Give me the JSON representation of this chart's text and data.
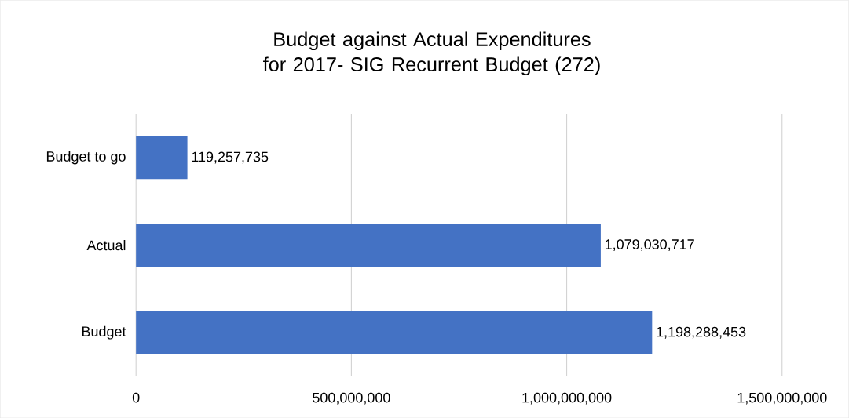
{
  "chart_data": {
    "type": "bar",
    "orientation": "horizontal",
    "title": "Budget against Actual Expenditures for 2017- SIG Recurrent Budget (272)",
    "categories": [
      "Budget to go",
      "Actual",
      "Budget"
    ],
    "values": [
      119257735,
      1079030717,
      1198288453
    ],
    "value_labels": [
      "119,257,735",
      "1,079,030,717",
      "1,198,288,453"
    ],
    "color": "#4472c4",
    "xlim": [
      0,
      1500000000
    ],
    "xticks": [
      0,
      {
        "value": 500000000,
        "label": "500,000,000"
      },
      {
        "value": 1000000000,
        "label": "1,000,000,000"
      },
      {
        "value": 1500000000,
        "label": "1,500,000,000"
      }
    ],
    "grid": "x"
  }
}
